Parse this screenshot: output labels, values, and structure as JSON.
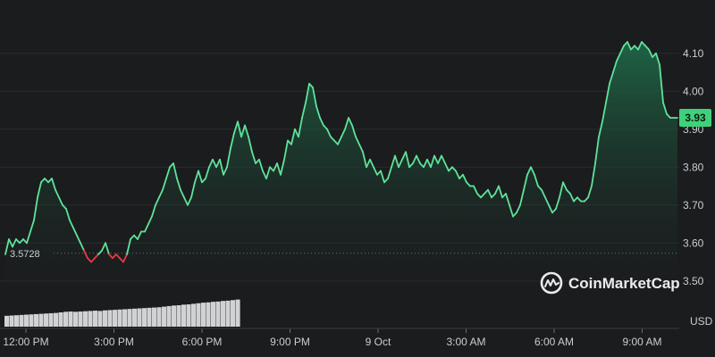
{
  "chart_data": {
    "type": "line",
    "x_start": "12:00 PM",
    "x_labels": [
      "12:00 PM",
      "3:00 PM",
      "6:00 PM",
      "9:00 PM",
      "9 Oct",
      "3:00 AM",
      "6:00 AM",
      "9:00 AM"
    ],
    "y_ticks": [
      "3.50",
      "3.60",
      "3.70",
      "3.80",
      "3.90",
      "4.00",
      "4.10"
    ],
    "ylim": [
      3.45,
      4.17
    ],
    "unit_label": "USD",
    "baseline_label": "3.5728",
    "baseline_value": 3.5728,
    "current_price": "3.93",
    "grid": true,
    "series": [
      {
        "values": [
          3.57,
          3.61,
          3.59,
          3.61,
          3.6,
          3.61,
          3.6,
          3.63,
          3.66,
          3.72,
          3.76,
          3.77,
          3.76,
          3.77,
          3.74,
          3.72,
          3.7,
          3.69,
          3.66,
          3.64,
          3.62,
          3.6,
          3.58,
          3.56,
          3.55,
          3.56,
          3.57,
          3.58,
          3.6,
          3.57,
          3.56,
          3.57,
          3.56,
          3.55,
          3.57,
          3.61,
          3.62,
          3.61,
          3.63,
          3.63,
          3.65,
          3.67,
          3.7,
          3.72,
          3.74,
          3.77,
          3.8,
          3.81,
          3.77,
          3.74,
          3.72,
          3.7,
          3.72,
          3.76,
          3.79,
          3.76,
          3.77,
          3.8,
          3.82,
          3.8,
          3.82,
          3.78,
          3.8,
          3.85,
          3.89,
          3.92,
          3.88,
          3.91,
          3.88,
          3.84,
          3.81,
          3.82,
          3.79,
          3.77,
          3.8,
          3.79,
          3.81,
          3.78,
          3.82,
          3.87,
          3.86,
          3.9,
          3.88,
          3.93,
          3.97,
          4.02,
          4.01,
          3.96,
          3.93,
          3.91,
          3.9,
          3.88,
          3.87,
          3.86,
          3.88,
          3.9,
          3.93,
          3.91,
          3.88,
          3.86,
          3.84,
          3.8,
          3.82,
          3.8,
          3.78,
          3.79,
          3.76,
          3.77,
          3.8,
          3.83,
          3.8,
          3.82,
          3.84,
          3.8,
          3.81,
          3.83,
          3.81,
          3.8,
          3.82,
          3.8,
          3.83,
          3.81,
          3.83,
          3.81,
          3.79,
          3.8,
          3.79,
          3.77,
          3.78,
          3.76,
          3.75,
          3.75,
          3.73,
          3.72,
          3.73,
          3.74,
          3.72,
          3.73,
          3.75,
          3.72,
          3.73,
          3.7,
          3.67,
          3.68,
          3.7,
          3.74,
          3.78,
          3.8,
          3.78,
          3.75,
          3.74,
          3.72,
          3.7,
          3.68,
          3.69,
          3.72,
          3.76,
          3.74,
          3.73,
          3.71,
          3.72,
          3.71,
          3.71,
          3.72,
          3.75,
          3.81,
          3.88,
          3.92,
          3.97,
          4.02,
          4.05,
          4.08,
          4.1,
          4.12,
          4.13,
          4.11,
          4.12,
          4.11,
          4.13,
          4.12,
          4.11,
          4.09,
          4.1,
          4.07,
          3.97,
          3.94,
          3.93,
          3.93,
          3.93
        ]
      }
    ],
    "volume": [
      0.38,
      0.39,
      0.4,
      0.41,
      0.42,
      0.43,
      0.44,
      0.45,
      0.46,
      0.47,
      0.48,
      0.5,
      0.52,
      0.53,
      0.52,
      0.53,
      0.54,
      0.55,
      0.56,
      0.55,
      0.57,
      0.58,
      0.59,
      0.6,
      0.61,
      0.62,
      0.63,
      0.64,
      0.65,
      0.66,
      0.67,
      0.68,
      0.7,
      0.72,
      0.74,
      0.75,
      0.77,
      0.78,
      0.8,
      0.82,
      0.84,
      0.85,
      0.87,
      0.88,
      0.9,
      0.91,
      0.93,
      0.95
    ],
    "colors": {
      "up_line": "#5fe39a",
      "down_line": "#ea3943",
      "area_top": "#1f6b49",
      "area_bottom": "#1b1c1e",
      "grid": "#2a2c2f",
      "badge": "#3fd17a",
      "volume_bar": "#e6e7e8"
    }
  },
  "brand": {
    "name": "CoinMarketCap",
    "icon": "coinmarketcap-logo-icon"
  }
}
